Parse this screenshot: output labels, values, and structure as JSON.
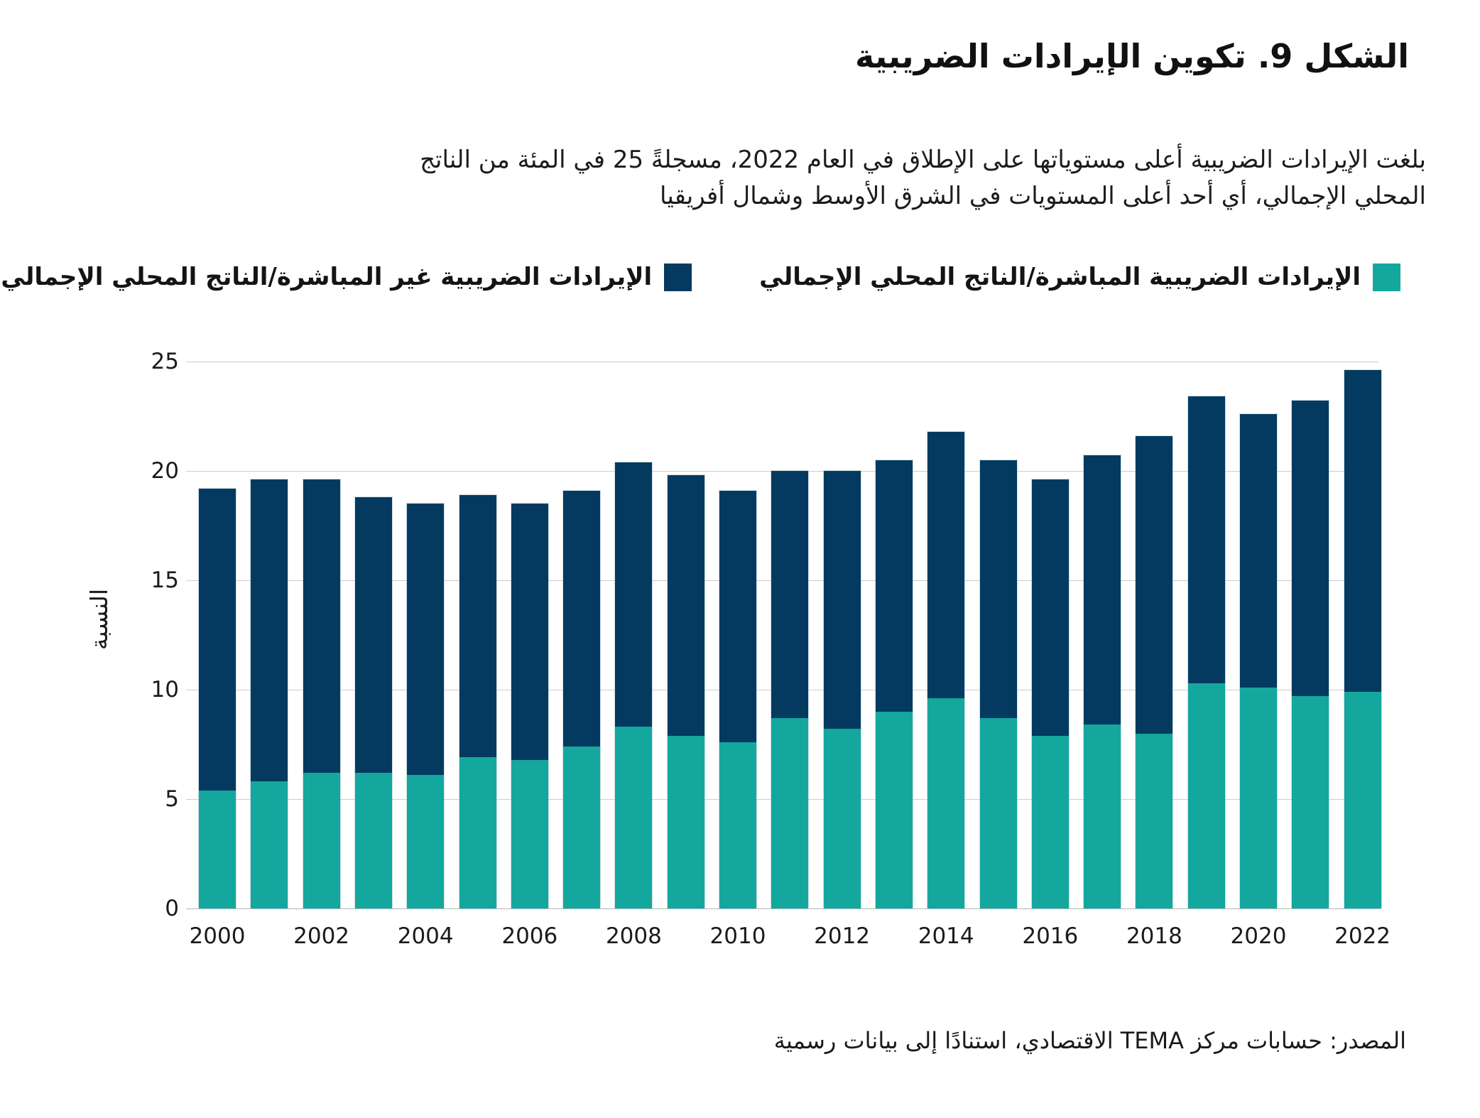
{
  "title": "الشكل 9. تكوين الإيرادات الضريبية",
  "subtitle_lines": [
    "بلغت الإيرادات الضريبية أعلى مستوياتها على الإطلاق في العام 2022، مسجلةً 25 في المئة من الناتج",
    "المحلي الإجمالي، أي أحد أعلى المستويات في الشرق الأوسط وشمال أفريقيا"
  ],
  "legend": [
    {
      "label": "الإيرادات الضريبية المباشرة/الناتج المحلي الإجمالي",
      "color": "#14A79D"
    },
    {
      "label": "الإيرادات الضريبية غير المباشرة/الناتج المحلي الإجمالي",
      "color": "#043A5F"
    }
  ],
  "source": "المصدر: حسابات مركز TEMA الاقتصادي، استنادًا إلى بيانات رسمية",
  "colors": {
    "direct": "#14A79D",
    "indirect": "#043A5F",
    "gridline": "#cdcdcd",
    "baseline": "#b5b5b5",
    "text": "#1a1a1a"
  },
  "chart_data": {
    "type": "bar",
    "stacked": true,
    "title": "الشكل 9. تكوين الإيرادات الضريبية",
    "ylabel": "النسبة",
    "xlabel": "",
    "ylim": [
      0,
      25
    ],
    "yticks": [
      0,
      5,
      10,
      15,
      20,
      25
    ],
    "grid": true,
    "legend_position": "top",
    "years": [
      2000,
      2001,
      2002,
      2003,
      2004,
      2005,
      2006,
      2007,
      2008,
      2009,
      2010,
      2011,
      2012,
      2013,
      2014,
      2015,
      2016,
      2017,
      2018,
      2019,
      2020,
      2021,
      2022
    ],
    "x_tick_labels": [
      "2000",
      "2002",
      "2004",
      "2006",
      "2008",
      "2010",
      "2012",
      "2014",
      "2016",
      "2018",
      "2020",
      "2022"
    ],
    "series": [
      {
        "name": "الإيرادات الضريبية المباشرة/الناتج المحلي الإجمالي",
        "color": "#14A79D",
        "values": [
          5.4,
          5.8,
          6.2,
          6.2,
          6.1,
          6.9,
          6.8,
          7.4,
          8.3,
          7.9,
          7.6,
          8.7,
          8.2,
          9.0,
          9.6,
          8.7,
          7.9,
          8.4,
          8.0,
          10.3,
          10.1,
          9.7,
          9.9
        ]
      },
      {
        "name": "الإيرادات الضريبية غير المباشرة/الناتج المحلي الإجمالي",
        "color": "#043A5F",
        "values": [
          13.8,
          13.8,
          13.4,
          12.6,
          12.4,
          12.0,
          11.7,
          11.7,
          12.1,
          11.9,
          11.5,
          11.3,
          11.8,
          11.5,
          12.2,
          11.8,
          11.7,
          12.3,
          13.6,
          13.1,
          12.5,
          13.5,
          14.7
        ]
      }
    ]
  }
}
